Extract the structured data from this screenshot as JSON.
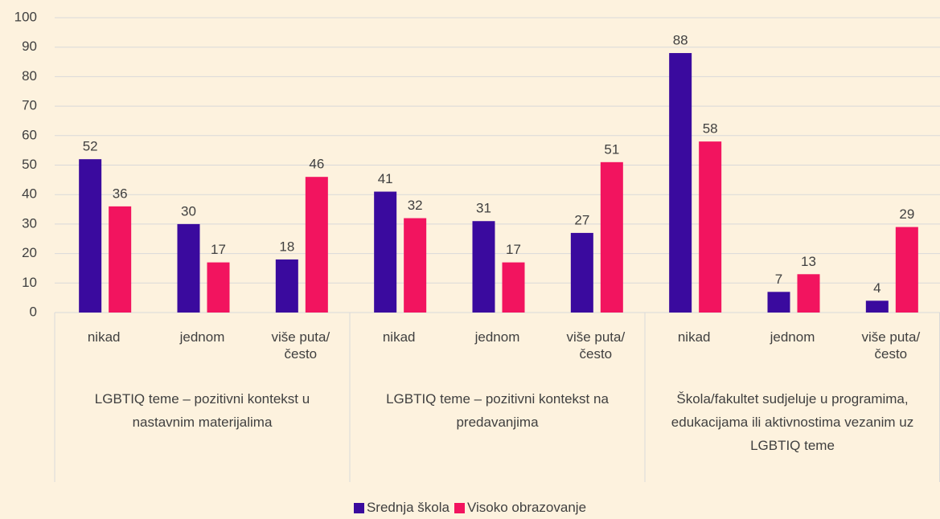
{
  "chart_data": {
    "type": "bar",
    "categories": [
      "nikad",
      "jednom",
      "više puta/često",
      "nikad",
      "jednom",
      "više puta/često",
      "nikad",
      "jednom",
      "više puta/često"
    ],
    "groups": [
      "LGBTIQ teme – pozitivni kontekst u nastavnim materijalima",
      "LGBTIQ teme – pozitivni kontekst na predavanjima",
      "Škola/fakultet sudjeluje u programima, edukacijama ili aktivnostima vezanim uz LGBTIQ teme"
    ],
    "series": [
      {
        "name": "Srednja škola",
        "color": "#3a0a9e",
        "values": [
          52,
          30,
          18,
          41,
          31,
          27,
          88,
          7,
          4
        ]
      },
      {
        "name": "Visoko obrazovanje",
        "color": "#f2145f",
        "values": [
          36,
          17,
          46,
          32,
          17,
          51,
          58,
          13,
          29
        ]
      }
    ],
    "ylim": [
      0,
      100
    ],
    "yticks": [
      0,
      10,
      20,
      30,
      40,
      50,
      60,
      70,
      80,
      90,
      100
    ],
    "grid": true,
    "legend": "bottom"
  }
}
